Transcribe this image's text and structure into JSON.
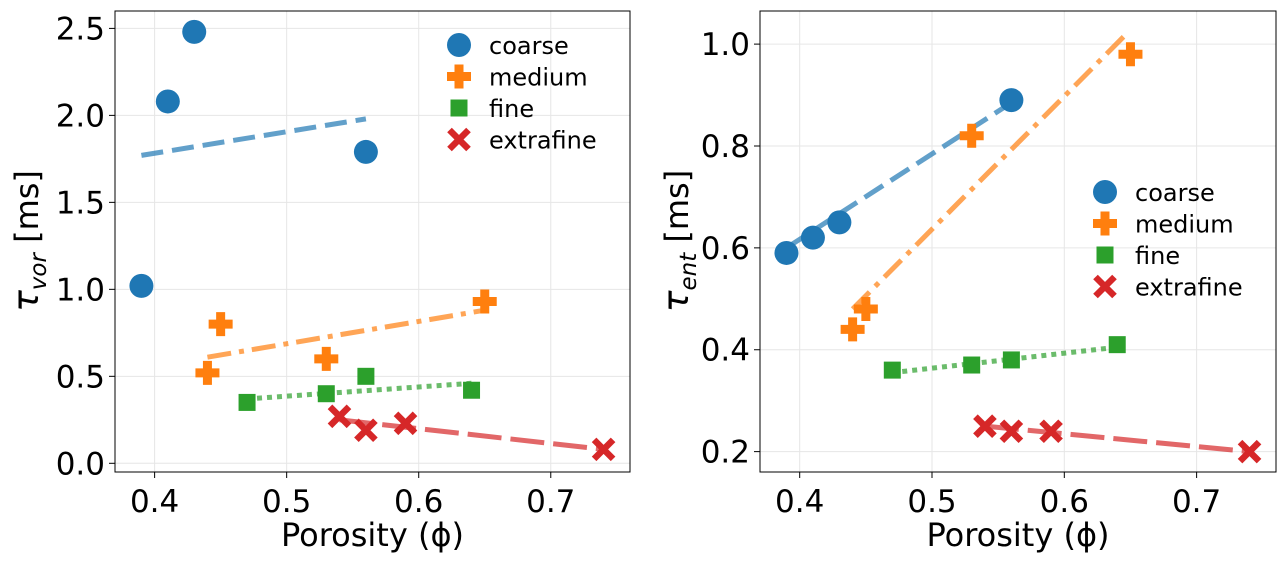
{
  "chart_data": [
    {
      "type": "scatter",
      "xlabel": "Porosity (ϕ)",
      "ylabel_base": "τ",
      "ylabel_sub": "vor",
      "ylabel_unit": " [ms]",
      "xlim": [
        0.37,
        0.76
      ],
      "ylim": [
        -0.05,
        2.6
      ],
      "xticks": [
        0.4,
        0.5,
        0.6,
        0.7
      ],
      "xtick_labels": [
        "0.4",
        "0.5",
        "0.6",
        "0.7"
      ],
      "yticks": [
        0.0,
        0.5,
        1.0,
        1.5,
        2.0,
        2.5
      ],
      "ytick_labels": [
        "0.0",
        "0.5",
        "1.0",
        "1.5",
        "2.0",
        "2.5"
      ],
      "grid": true,
      "legend_position": "top-right",
      "series": [
        {
          "name": "coarse",
          "color": "#1f77b4",
          "marker": "circle",
          "linestyle": "dashed",
          "x": [
            0.39,
            0.41,
            0.43,
            0.56
          ],
          "y": [
            1.02,
            2.08,
            2.48,
            1.79
          ],
          "fit": [
            [
              0.39,
              1.77
            ],
            [
              0.56,
              1.98
            ]
          ]
        },
        {
          "name": "medium",
          "color": "#ff7f0e",
          "marker": "plus",
          "linestyle": "dashdot",
          "x": [
            0.44,
            0.45,
            0.53,
            0.65
          ],
          "y": [
            0.52,
            0.8,
            0.6,
            0.93
          ],
          "fit": [
            [
              0.44,
              0.61
            ],
            [
              0.65,
              0.88
            ]
          ]
        },
        {
          "name": "fine",
          "color": "#2ca02c",
          "marker": "square",
          "linestyle": "dotted",
          "x": [
            0.47,
            0.53,
            0.56,
            0.64
          ],
          "y": [
            0.35,
            0.4,
            0.5,
            0.42
          ],
          "fit": [
            [
              0.47,
              0.37
            ],
            [
              0.64,
              0.46
            ]
          ]
        },
        {
          "name": "extrafine",
          "color": "#d62728",
          "marker": "x",
          "linestyle": "longdash",
          "x": [
            0.54,
            0.56,
            0.59,
            0.74
          ],
          "y": [
            0.27,
            0.19,
            0.23,
            0.08
          ],
          "fit": [
            [
              0.54,
              0.25
            ],
            [
              0.74,
              0.08
            ]
          ]
        }
      ]
    },
    {
      "type": "scatter",
      "xlabel": "Porosity (ϕ)",
      "ylabel_base": "τ",
      "ylabel_sub": "ent",
      "ylabel_unit": " [ms]",
      "xlim": [
        0.37,
        0.76
      ],
      "ylim": [
        0.16,
        1.065
      ],
      "xticks": [
        0.4,
        0.5,
        0.6,
        0.7
      ],
      "xtick_labels": [
        "0.4",
        "0.5",
        "0.6",
        "0.7"
      ],
      "yticks": [
        0.2,
        0.4,
        0.6,
        0.8,
        1.0
      ],
      "ytick_labels": [
        "0.2",
        "0.4",
        "0.6",
        "0.8",
        "1.0"
      ],
      "grid": true,
      "legend_position": "center-right",
      "series": [
        {
          "name": "coarse",
          "color": "#1f77b4",
          "marker": "circle",
          "linestyle": "dashed",
          "x": [
            0.39,
            0.41,
            0.43,
            0.56
          ],
          "y": [
            0.59,
            0.62,
            0.65,
            0.89
          ],
          "fit": [
            [
              0.39,
              0.6
            ],
            [
              0.56,
              0.885
            ]
          ]
        },
        {
          "name": "medium",
          "color": "#ff7f0e",
          "marker": "plus",
          "linestyle": "dashdot",
          "x": [
            0.44,
            0.45,
            0.53,
            0.65
          ],
          "y": [
            0.44,
            0.48,
            0.82,
            0.98
          ],
          "fit": [
            [
              0.44,
              0.48
            ],
            [
              0.645,
              1.015
            ]
          ]
        },
        {
          "name": "fine",
          "color": "#2ca02c",
          "marker": "square",
          "linestyle": "dotted",
          "x": [
            0.47,
            0.53,
            0.56,
            0.64
          ],
          "y": [
            0.36,
            0.37,
            0.38,
            0.41
          ],
          "fit": [
            [
              0.47,
              0.355
            ],
            [
              0.64,
              0.405
            ]
          ]
        },
        {
          "name": "extrafine",
          "color": "#d62728",
          "marker": "x",
          "linestyle": "longdash",
          "x": [
            0.54,
            0.56,
            0.59,
            0.74
          ],
          "y": [
            0.25,
            0.24,
            0.24,
            0.2
          ],
          "fit": [
            [
              0.54,
              0.25
            ],
            [
              0.74,
              0.2
            ]
          ]
        }
      ]
    }
  ]
}
